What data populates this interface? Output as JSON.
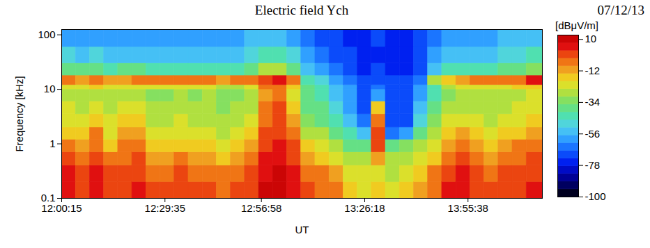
{
  "chart_data": {
    "type": "heatmap",
    "title": "Electric field Ych",
    "subtitle": "07/12/13",
    "x_label": "UT",
    "y_label": "Frequency [kHz]",
    "log": "y",
    "xlim": [
      "12:00:15",
      "14:16:45"
    ],
    "xticks": [
      "12:00:15",
      "12:29:35",
      "12:56:58",
      "13:26:18",
      "13:55:38"
    ],
    "ylim": [
      0.1,
      125
    ],
    "yticks": [
      0.1,
      1,
      10,
      100
    ],
    "time_edges": [
      "12:00:15",
      "12:04:15",
      "12:08:15",
      "12:12:15",
      "12:16:15",
      "12:20:15",
      "12:24:15",
      "12:28:15",
      "12:32:15",
      "12:36:15",
      "12:40:15",
      "12:44:15",
      "12:48:15",
      "12:52:15",
      "12:56:15",
      "13:00:15",
      "13:04:15",
      "13:08:15",
      "13:12:15",
      "13:16:15",
      "13:20:15",
      "13:24:15",
      "13:28:15",
      "13:32:15",
      "13:36:15",
      "13:40:15",
      "13:44:15",
      "13:48:15",
      "13:52:15",
      "13:56:15",
      "14:00:15",
      "14:04:15",
      "14:08:15",
      "14:12:15",
      "14:16:45"
    ],
    "frequency_edges": [
      0.1,
      0.2,
      0.4,
      0.7,
      1.2,
      2,
      3.5,
      6,
      10,
      12,
      18,
      30,
      60,
      125
    ],
    "cells": [
      [
        6,
        5,
        0,
        -6,
        -14,
        -20,
        -24,
        -26,
        -20,
        -8,
        -38,
        -50,
        -58
      ],
      [
        2,
        0,
        -6,
        -12,
        -18,
        -22,
        -26,
        -28,
        -22,
        -10,
        -40,
        -52,
        -60
      ],
      [
        6,
        4,
        0,
        -4,
        -8,
        -16,
        -22,
        -26,
        -18,
        -8,
        -38,
        -50,
        -58
      ],
      [
        0,
        -2,
        -8,
        -14,
        -20,
        -24,
        -28,
        -30,
        -22,
        -12,
        -42,
        -54,
        -60
      ],
      [
        2,
        0,
        -4,
        -8,
        -12,
        -18,
        -24,
        -28,
        -22,
        -10,
        -40,
        -52,
        -60
      ],
      [
        4,
        2,
        -2,
        -6,
        -10,
        -16,
        -22,
        -26,
        -20,
        -6,
        -40,
        -52,
        -58
      ],
      [
        0,
        -4,
        -10,
        -16,
        -22,
        -26,
        -30,
        -32,
        -24,
        -8,
        -42,
        -54,
        -60
      ],
      [
        -2,
        -6,
        -12,
        -18,
        -24,
        -28,
        -30,
        -32,
        -22,
        -6,
        -44,
        -52,
        -58
      ],
      [
        2,
        -2,
        -8,
        -14,
        -20,
        -24,
        -28,
        -30,
        -20,
        -4,
        -42,
        -52,
        -60
      ],
      [
        -2,
        -6,
        -12,
        -18,
        -24,
        -28,
        -30,
        -32,
        -24,
        -8,
        -44,
        -54,
        -60
      ],
      [
        0,
        -4,
        -10,
        -16,
        -22,
        -26,
        -30,
        -30,
        -24,
        -8,
        -44,
        -52,
        -58
      ],
      [
        -4,
        -8,
        -14,
        -20,
        -26,
        -30,
        -32,
        -34,
        -28,
        -10,
        -46,
        -54,
        -60
      ],
      [
        -2,
        -6,
        -12,
        -18,
        -24,
        -28,
        -30,
        -32,
        -26,
        -8,
        -44,
        -54,
        -60
      ],
      [
        2,
        0,
        -4,
        -10,
        -16,
        -22,
        -26,
        -28,
        -20,
        -6,
        -40,
        -50,
        -56
      ],
      [
        8,
        6,
        4,
        2,
        0,
        -4,
        -8,
        -10,
        -6,
        0,
        -30,
        -44,
        -54
      ],
      [
        8,
        8,
        6,
        4,
        2,
        0,
        -2,
        -4,
        -4,
        4,
        -28,
        -42,
        -52
      ],
      [
        6,
        4,
        2,
        -2,
        -6,
        -12,
        -16,
        -20,
        -16,
        -8,
        -40,
        -50,
        -58
      ],
      [
        0,
        -4,
        -10,
        -18,
        -26,
        -32,
        -36,
        -40,
        -40,
        -42,
        -52,
        -62,
        -66
      ],
      [
        -4,
        -8,
        -14,
        -22,
        -30,
        -36,
        -40,
        -44,
        -46,
        -50,
        -60,
        -66,
        -70
      ],
      [
        -8,
        -12,
        -20,
        -30,
        -40,
        -46,
        -50,
        -52,
        -55,
        -58,
        -64,
        -70,
        -72
      ],
      [
        -14,
        -20,
        -28,
        -36,
        -46,
        -54,
        -58,
        -60,
        -62,
        -64,
        -68,
        -72,
        -74
      ],
      [
        -20,
        -24,
        -30,
        -38,
        -55,
        -66,
        -70,
        -70,
        -72,
        -72,
        -74,
        -76,
        -74
      ],
      [
        -16,
        -20,
        -10,
        -2,
        -2,
        -6,
        -14,
        -60,
        -66,
        -70,
        -72,
        -74,
        -72
      ],
      [
        -24,
        -26,
        -30,
        -36,
        -64,
        -70,
        -72,
        -72,
        -72,
        -72,
        -74,
        -76,
        -74
      ],
      [
        -16,
        -20,
        -26,
        -32,
        -60,
        -68,
        -70,
        -70,
        -72,
        -72,
        -74,
        -76,
        -74
      ],
      [
        -10,
        -14,
        -20,
        -28,
        -40,
        -50,
        -56,
        -58,
        -62,
        -64,
        -68,
        -72,
        -72
      ],
      [
        -4,
        -8,
        -14,
        -20,
        -28,
        -34,
        -38,
        -42,
        -42,
        -30,
        -52,
        -60,
        -64
      ],
      [
        4,
        2,
        -4,
        -10,
        -18,
        -24,
        -28,
        -32,
        -28,
        -16,
        -46,
        -56,
        -62
      ],
      [
        6,
        4,
        0,
        -6,
        -12,
        -20,
        -26,
        -30,
        -24,
        -10,
        -44,
        -54,
        -60
      ],
      [
        2,
        0,
        -4,
        -10,
        -16,
        -22,
        -26,
        -28,
        -22,
        -8,
        -42,
        -52,
        -58
      ],
      [
        -2,
        -4,
        -10,
        -14,
        -20,
        -26,
        -30,
        -30,
        -22,
        -8,
        -42,
        -52,
        -58
      ],
      [
        0,
        -2,
        -6,
        -12,
        -18,
        -22,
        -26,
        -28,
        -20,
        -6,
        -40,
        -50,
        -56
      ],
      [
        2,
        0,
        -4,
        -8,
        -14,
        -20,
        -24,
        -26,
        -18,
        -4,
        -38,
        -50,
        -56
      ],
      [
        4,
        2,
        -2,
        -6,
        -10,
        -16,
        -22,
        -24,
        -14,
        4,
        -34,
        -46,
        -52
      ]
    ],
    "colorbar": {
      "label": "[dBμV/m]",
      "lim": [
        -100,
        13
      ],
      "ticks": [
        10,
        -12,
        -34,
        -56,
        -78,
        -100
      ]
    }
  }
}
